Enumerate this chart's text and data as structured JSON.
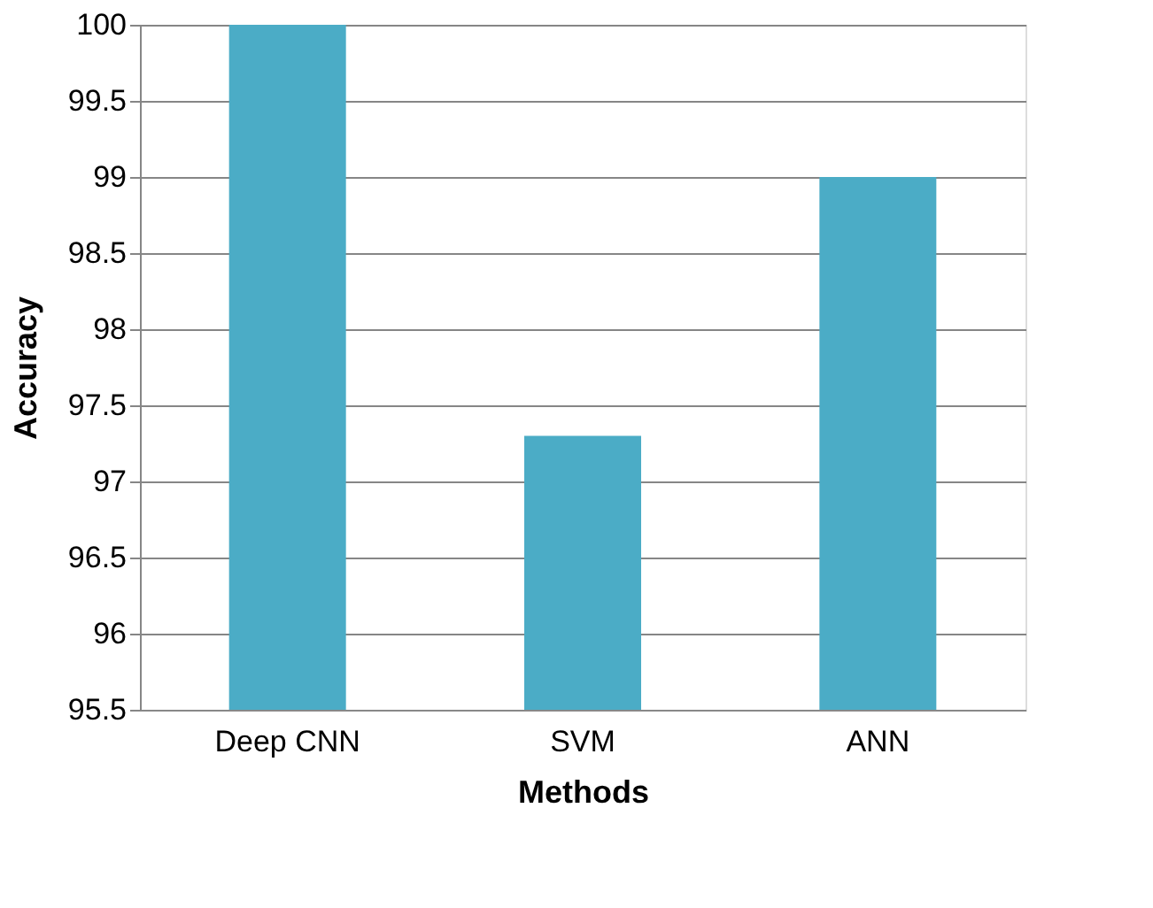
{
  "chart_data": {
    "type": "bar",
    "xlabel": "Methods",
    "ylabel": "Accuracy",
    "categories": [
      "Deep CNN",
      "SVM",
      "ANN"
    ],
    "values": [
      100,
      97.3,
      99
    ],
    "color": "#4bacc6",
    "ylim": [
      95.5,
      100
    ],
    "yticks": [
      95.5,
      96,
      96.5,
      97,
      97.5,
      98,
      98.5,
      99,
      99.5,
      100
    ],
    "grid": "y"
  }
}
